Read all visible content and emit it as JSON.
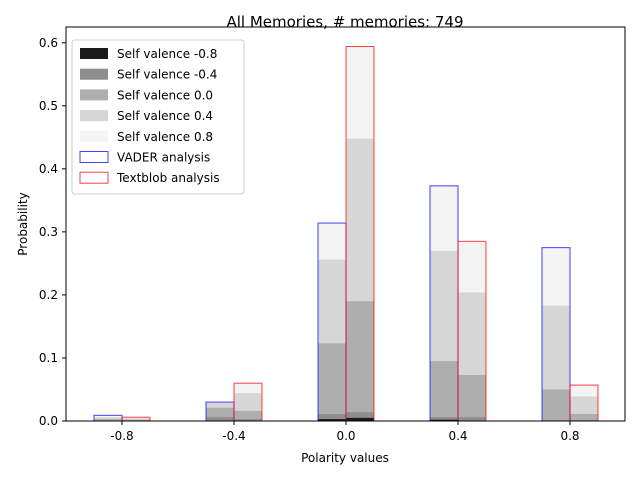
{
  "chart_data": {
    "type": "bar",
    "title": "All Memories, # memories: 749",
    "xlabel": "Polarity values",
    "ylabel": "Probability",
    "categories": [
      "-0.8",
      "-0.4",
      "0.0",
      "0.4",
      "0.8"
    ],
    "ylim": [
      0,
      0.625
    ],
    "yticks": [
      "0.0",
      "0.1",
      "0.2",
      "0.3",
      "0.4",
      "0.5",
      "0.6"
    ],
    "legend_position": "upper-left",
    "grid": false,
    "stack_series": [
      {
        "name": "Self valence -0.8",
        "color": "#1a1a1a",
        "vader": [
          0.0,
          0.0,
          0.003,
          0.002,
          0.0
        ],
        "textblob": [
          0.0,
          0.0,
          0.005,
          0.0,
          0.0
        ]
      },
      {
        "name": "Self valence -0.4",
        "color": "#8e8e8e",
        "vader": [
          0.0,
          0.006,
          0.011,
          0.006,
          0.0
        ],
        "textblob": [
          0.0,
          0.003,
          0.014,
          0.006,
          0.001
        ]
      },
      {
        "name": "Self valence 0.0",
        "color": "#aeaeae",
        "vader": [
          0.003,
          0.021,
          0.123,
          0.095,
          0.05
        ],
        "textblob": [
          0.002,
          0.016,
          0.19,
          0.073,
          0.011
        ]
      },
      {
        "name": "Self valence 0.4",
        "color": "#d6d6d6",
        "vader": [
          0.006,
          0.029,
          0.256,
          0.27,
          0.183
        ],
        "textblob": [
          0.004,
          0.044,
          0.448,
          0.204,
          0.039
        ]
      },
      {
        "name": "Self valence 0.8",
        "color": "#f4f4f4",
        "vader": [
          0.009,
          0.03,
          0.314,
          0.373,
          0.275
        ],
        "textblob": [
          0.006,
          0.06,
          0.594,
          0.285,
          0.057
        ]
      }
    ],
    "outline_series": [
      {
        "name": "VADER analysis",
        "color": "#0000ff",
        "key": "vader"
      },
      {
        "name": "Textblob analysis",
        "color": "#ff0000",
        "key": "textblob"
      }
    ]
  }
}
